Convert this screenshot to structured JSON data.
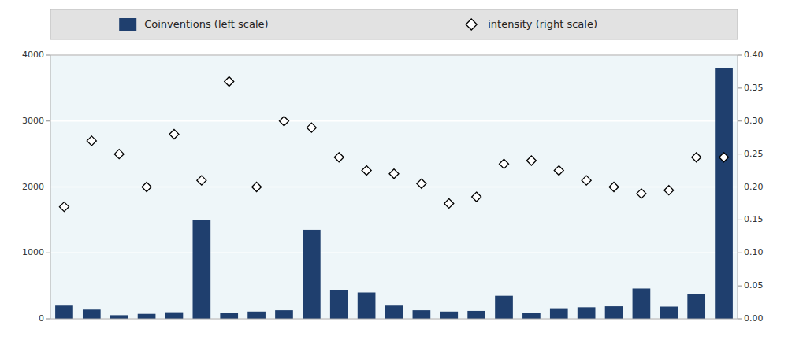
{
  "chart_data": {
    "type": "bar",
    "categories": [
      null,
      null,
      null,
      null,
      null,
      null,
      null,
      null,
      null,
      null,
      null,
      null,
      null,
      null,
      null,
      null,
      null,
      null,
      null,
      null,
      null,
      null,
      null,
      null,
      null
    ],
    "series": [
      {
        "name": "Coinventions (left scale)",
        "type": "bar",
        "color": "#1f3f6e",
        "values": [
          200,
          140,
          55,
          75,
          100,
          1500,
          95,
          110,
          130,
          1350,
          430,
          400,
          200,
          130,
          110,
          120,
          350,
          90,
          160,
          175,
          190,
          460,
          185,
          380,
          3800
        ]
      },
      {
        "name": "intensity (right scale)",
        "type": "scatter",
        "marker": "diamond",
        "axis": "y2",
        "values": [
          0.17,
          0.27,
          0.25,
          0.2,
          0.28,
          0.21,
          0.36,
          0.2,
          0.3,
          0.29,
          0.245,
          0.225,
          0.22,
          0.205,
          0.175,
          0.185,
          0.235,
          0.24,
          0.225,
          0.21,
          0.2,
          0.19,
          0.195,
          0.245,
          0.245
        ]
      }
    ],
    "ylim": [
      0,
      4000
    ],
    "yticks": [
      0,
      1000,
      2000,
      3000,
      4000
    ],
    "y2lim": [
      0,
      0.4
    ],
    "y2ticks": [
      {
        "value": 0.0,
        "label": "0.00"
      },
      0.05,
      {
        "value": 0.1,
        "label": "0.10"
      },
      0.15,
      {
        "value": 0.2,
        "label": "0.20"
      },
      0.25,
      {
        "value": 0.3,
        "label": "0.30"
      },
      0.35,
      {
        "value": 0.4,
        "label": "0.40"
      }
    ],
    "grid": true,
    "legend": "top",
    "tick_labels": "y"
  }
}
